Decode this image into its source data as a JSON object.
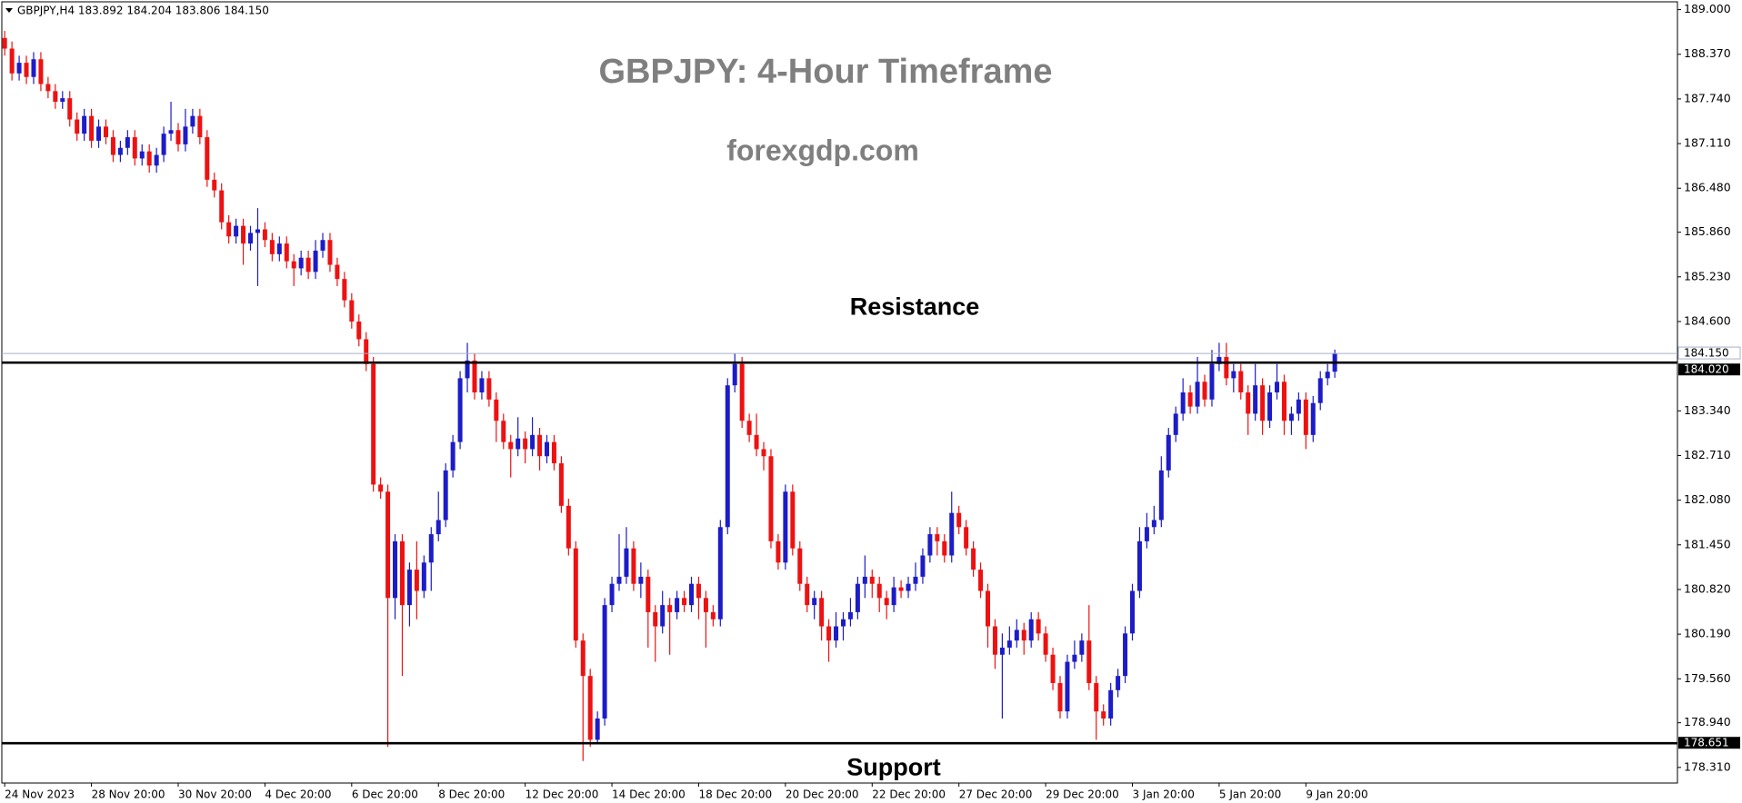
{
  "chart_data": {
    "type": "candlestick",
    "header": "GBPJPY,H4 183.892 184.204 183.806 184.150",
    "title": "GBPJPY: 4-Hour Timeframe",
    "subtitle": "forexgdp.com",
    "annotations": [
      "Resistance",
      "Support"
    ],
    "up_color": "#1c1cc8",
    "down_color": "#ee1111",
    "xlim": [
      -0.4,
      231.4
    ],
    "ylim": [
      178.09,
      189.11
    ],
    "yticks": [
      {
        "value": 189,
        "label": "189.000"
      },
      {
        "value": 188.37,
        "label": "188.370"
      },
      {
        "value": 187.74,
        "label": "187.740"
      },
      {
        "value": 187.11,
        "label": "187.110"
      },
      {
        "value": 186.48,
        "label": "186.480"
      },
      {
        "value": 185.86,
        "label": "185.860"
      },
      {
        "value": 185.23,
        "label": "185.230"
      },
      {
        "value": 184.6,
        "label": "184.600"
      },
      {
        "value": 183.34,
        "label": "183.340"
      },
      {
        "value": 182.71,
        "label": "182.710"
      },
      {
        "value": 182.08,
        "label": "182.080"
      },
      {
        "value": 181.45,
        "label": "181.450"
      },
      {
        "value": 180.82,
        "label": "180.820"
      },
      {
        "value": 180.19,
        "label": "180.190"
      },
      {
        "value": 179.56,
        "label": "179.560"
      },
      {
        "value": 178.94,
        "label": "178.940"
      },
      {
        "value": 178.31,
        "label": "178.310"
      }
    ],
    "xticks": [
      {
        "value": 0,
        "label": "24 Nov 2023"
      },
      {
        "value": 12,
        "label": "28 Nov 20:00"
      },
      {
        "value": 24,
        "label": "30 Nov 20:00"
      },
      {
        "value": 36,
        "label": "4 Dec 20:00"
      },
      {
        "value": 48,
        "label": "6 Dec 20:00"
      },
      {
        "value": 60,
        "label": "8 Dec 20:00"
      },
      {
        "value": 72,
        "label": "12 Dec 20:00"
      },
      {
        "value": 84,
        "label": "14 Dec 20:00"
      },
      {
        "value": 96,
        "label": "18 Dec 20:00"
      },
      {
        "value": 108,
        "label": "20 Dec 20:00"
      },
      {
        "value": 120,
        "label": "22 Dec 20:00"
      },
      {
        "value": 132,
        "label": "27 Dec 20:00"
      },
      {
        "value": 144,
        "label": "29 Dec 20:00"
      },
      {
        "value": 156,
        "label": "3 Jan 20:00"
      },
      {
        "value": 168,
        "label": "5 Jan 20:00"
      },
      {
        "value": 180,
        "label": "9 Jan 20:00"
      }
    ],
    "price_line": {
      "value": 184.15,
      "label": "184.150",
      "color": "#aab0c8"
    },
    "levels": [
      {
        "value": 184.02,
        "label": "184.020",
        "color": "#000000"
      },
      {
        "value": 178.651,
        "label": "178.651",
        "color": "#000000"
      }
    ],
    "open": [
      188.6,
      188.45,
      188.1,
      188.25,
      188.05,
      188.3,
      187.95,
      187.85,
      187.7,
      187.75,
      187.45,
      187.25,
      187.5,
      187.15,
      187.35,
      187.2,
      186.95,
      187.05,
      187.2,
      186.9,
      187,
      186.8,
      186.95,
      187.25,
      187.3,
      187.1,
      187.35,
      187.5,
      187.2,
      186.6,
      186.45,
      186,
      185.8,
      185.95,
      185.7,
      185.85,
      185.9,
      185.75,
      185.55,
      185.7,
      185.45,
      185.35,
      185.5,
      185.3,
      185.6,
      185.75,
      185.4,
      185.2,
      184.9,
      184.6,
      184.35,
      184,
      182.3,
      182.2,
      180.7,
      181.5,
      180.6,
      181.1,
      180.8,
      181.2,
      181.6,
      181.8,
      182.5,
      182.9,
      183.8,
      184.05,
      183.6,
      183.8,
      183.5,
      183.2,
      182.9,
      182.8,
      182.95,
      182.8,
      183,
      182.7,
      182.9,
      182.6,
      182,
      181.4,
      180.1,
      179.6,
      178.7,
      179,
      180.6,
      180.9,
      181,
      181.4,
      180.9,
      181,
      180.5,
      180.3,
      180.6,
      180.5,
      180.7,
      180.6,
      180.9,
      180.7,
      180.5,
      180.4,
      181.7,
      183.7,
      184,
      183.2,
      183,
      182.8,
      182.7,
      181.5,
      181.2,
      182.2,
      181.4,
      180.9,
      180.6,
      180.7,
      180.3,
      180.1,
      180.3,
      180.4,
      180.5,
      180.9,
      181,
      180.9,
      180.7,
      180.6,
      180.85,
      180.8,
      180.9,
      181,
      181.3,
      181.6,
      181.5,
      181.3,
      181.9,
      181.7,
      181.4,
      181.1,
      180.8,
      180.3,
      179.9,
      180,
      180.1,
      180.25,
      180.1,
      180.4,
      180.2,
      179.9,
      179.5,
      179.1,
      179.8,
      179.9,
      180.1,
      179.5,
      179.1,
      179,
      179.4,
      179.6,
      180.2,
      180.8,
      181.5,
      181.7,
      181.8,
      182.5,
      183,
      183.3,
      183.6,
      183.4,
      183.75,
      183.5,
      184,
      184.1,
      183.8,
      183.9,
      183.6,
      183.3,
      183.7,
      183.2,
      183.6,
      183.75,
      183.2,
      183.3,
      183.5,
      183,
      183.45,
      183.8,
      183.892
    ],
    "high": [
      188.7,
      188.55,
      188.35,
      188.35,
      188.4,
      188.4,
      188.05,
      187.95,
      187.85,
      187.85,
      187.55,
      187.6,
      187.6,
      187.45,
      187.45,
      187.3,
      187.15,
      187.3,
      187.3,
      187.1,
      187.1,
      187.05,
      187.35,
      187.7,
      187.4,
      187.6,
      187.6,
      187.6,
      187.3,
      186.7,
      186.55,
      186.1,
      186.05,
      186.05,
      185.95,
      186.2,
      186,
      185.85,
      185.8,
      185.8,
      185.55,
      185.6,
      185.6,
      185.75,
      185.85,
      185.85,
      185.5,
      185.3,
      185,
      184.7,
      184.45,
      184.1,
      182.4,
      182.3,
      181.6,
      181.6,
      181.2,
      181.5,
      181.3,
      181.7,
      182.2,
      182.6,
      183,
      183.9,
      184.3,
      184.15,
      183.9,
      183.9,
      183.6,
      183.3,
      183,
      183.25,
      183.05,
      183.25,
      183.1,
      183,
      183,
      182.7,
      182.1,
      181.5,
      180.2,
      179.7,
      179.1,
      180.7,
      181,
      181.6,
      181.7,
      181.5,
      181.2,
      181.1,
      180.6,
      180.8,
      180.7,
      180.8,
      180.8,
      181,
      181,
      180.8,
      180.6,
      181.8,
      183.8,
      184.15,
      184.1,
      183.3,
      183.3,
      182.9,
      182.8,
      181.6,
      182.3,
      182.3,
      181.5,
      181,
      180.8,
      180.8,
      180.4,
      180.5,
      180.5,
      180.7,
      181,
      181.3,
      181.1,
      181,
      180.8,
      181,
      180.95,
      181,
      181.2,
      181.4,
      181.7,
      181.7,
      181.6,
      182.2,
      182,
      181.8,
      181.5,
      181.2,
      180.9,
      180.4,
      180.2,
      180.3,
      180.4,
      180.35,
      180.5,
      180.5,
      180.3,
      180,
      179.6,
      179.9,
      180.1,
      180.2,
      180.6,
      179.6,
      179.2,
      179.5,
      179.7,
      180.3,
      180.9,
      181.7,
      181.9,
      182,
      182.7,
      183.1,
      183.4,
      183.8,
      183.7,
      184.1,
      183.85,
      184.2,
      184.3,
      184.3,
      184,
      184,
      183.7,
      184,
      183.8,
      183.7,
      184,
      183.85,
      183.4,
      183.6,
      183.6,
      183.55,
      183.9,
      184,
      184.204
    ],
    "low": [
      188.35,
      188,
      188,
      187.95,
      187.95,
      187.85,
      187.75,
      187.6,
      187.6,
      187.35,
      187.15,
      187.15,
      187.05,
      187.05,
      187.1,
      186.85,
      186.85,
      186.95,
      186.8,
      186.8,
      186.7,
      186.7,
      186.85,
      187.15,
      187,
      187,
      187.25,
      187.1,
      186.5,
      186.35,
      185.9,
      185.7,
      185.7,
      185.4,
      185.6,
      185.1,
      185.65,
      185.45,
      185.45,
      185.35,
      185.1,
      185.25,
      185.2,
      185.2,
      185.5,
      185.3,
      185.1,
      184.8,
      184.5,
      184.25,
      183.9,
      182.2,
      182.1,
      178.6,
      180.4,
      179.6,
      180.3,
      180.4,
      180.7,
      180.8,
      181.5,
      181.7,
      182.4,
      182.8,
      183.6,
      183.5,
      183.5,
      183.4,
      182.9,
      182.8,
      182.4,
      182.7,
      182.6,
      182.7,
      182.5,
      182.6,
      182.5,
      181.9,
      181.3,
      180,
      178.4,
      178.6,
      178.65,
      178.9,
      180.5,
      180.8,
      180.9,
      180.8,
      180.7,
      180,
      179.8,
      180.2,
      179.9,
      180.4,
      180.5,
      180.5,
      180.4,
      180,
      180.3,
      180.3,
      181.6,
      183.6,
      183.1,
      182.9,
      182.7,
      182.5,
      181.4,
      181.1,
      181.1,
      181.3,
      180.8,
      180.5,
      180.4,
      180.1,
      179.8,
      180,
      180.1,
      180.3,
      180.4,
      180.7,
      180.7,
      180.5,
      180.4,
      180.5,
      180.7,
      180.7,
      180.8,
      180.9,
      181.2,
      181.3,
      181.2,
      181.2,
      181.6,
      181.3,
      181,
      180.7,
      180,
      179.7,
      179,
      179.9,
      180,
      179.9,
      180,
      180.1,
      179.8,
      179.4,
      179,
      179,
      179.7,
      179.8,
      179.4,
      178.7,
      178.9,
      178.9,
      179.3,
      179.5,
      180.1,
      180.7,
      181.4,
      181.6,
      181.7,
      182.4,
      182.9,
      183.2,
      183.3,
      183.3,
      183.4,
      183.4,
      183.9,
      183.7,
      183.6,
      183.5,
      183,
      183.2,
      183,
      183.1,
      183.5,
      183,
      183,
      183.2,
      182.8,
      182.9,
      183.35,
      183.7,
      183.806
    ],
    "close": [
      188.45,
      188.1,
      188.25,
      188.05,
      188.3,
      187.95,
      187.85,
      187.7,
      187.75,
      187.45,
      187.25,
      187.5,
      187.15,
      187.35,
      187.2,
      186.95,
      187.05,
      187.2,
      186.9,
      187,
      186.8,
      186.95,
      187.25,
      187.3,
      187.1,
      187.35,
      187.5,
      187.2,
      186.6,
      186.45,
      186,
      185.8,
      185.95,
      185.7,
      185.85,
      185.9,
      185.75,
      185.55,
      185.7,
      185.45,
      185.35,
      185.5,
      185.3,
      185.6,
      185.75,
      185.4,
      185.2,
      184.9,
      184.6,
      184.35,
      184,
      182.3,
      182.2,
      180.7,
      181.5,
      180.6,
      181.1,
      180.8,
      181.2,
      181.6,
      181.8,
      182.5,
      182.9,
      183.8,
      184.05,
      183.6,
      183.8,
      183.5,
      183.2,
      182.9,
      182.8,
      182.95,
      182.8,
      183,
      182.7,
      182.9,
      182.6,
      182,
      181.4,
      180.1,
      179.6,
      178.7,
      179,
      180.6,
      180.9,
      181,
      181.4,
      180.9,
      181,
      180.5,
      180.3,
      180.6,
      180.5,
      180.7,
      180.6,
      180.9,
      180.7,
      180.5,
      180.4,
      181.7,
      183.7,
      184,
      183.2,
      183,
      182.8,
      182.7,
      181.5,
      181.2,
      182.2,
      181.4,
      180.9,
      180.6,
      180.7,
      180.3,
      180.1,
      180.3,
      180.4,
      180.5,
      180.9,
      181,
      180.9,
      180.7,
      180.6,
      180.85,
      180.8,
      180.9,
      181,
      181.3,
      181.6,
      181.5,
      181.3,
      181.9,
      181.7,
      181.4,
      181.1,
      180.8,
      180.3,
      179.9,
      180,
      180.1,
      180.25,
      180.1,
      180.4,
      180.2,
      179.9,
      179.5,
      179.1,
      179.8,
      179.9,
      180.1,
      179.5,
      179.1,
      179,
      179.4,
      179.6,
      180.2,
      180.8,
      181.5,
      181.7,
      181.8,
      182.5,
      183,
      183.3,
      183.6,
      183.4,
      183.75,
      183.5,
      184,
      184.1,
      183.8,
      183.9,
      183.6,
      183.3,
      183.7,
      183.2,
      183.6,
      183.75,
      183.2,
      183.3,
      183.5,
      183,
      183.45,
      183.8,
      183.892,
      184.15
    ]
  }
}
